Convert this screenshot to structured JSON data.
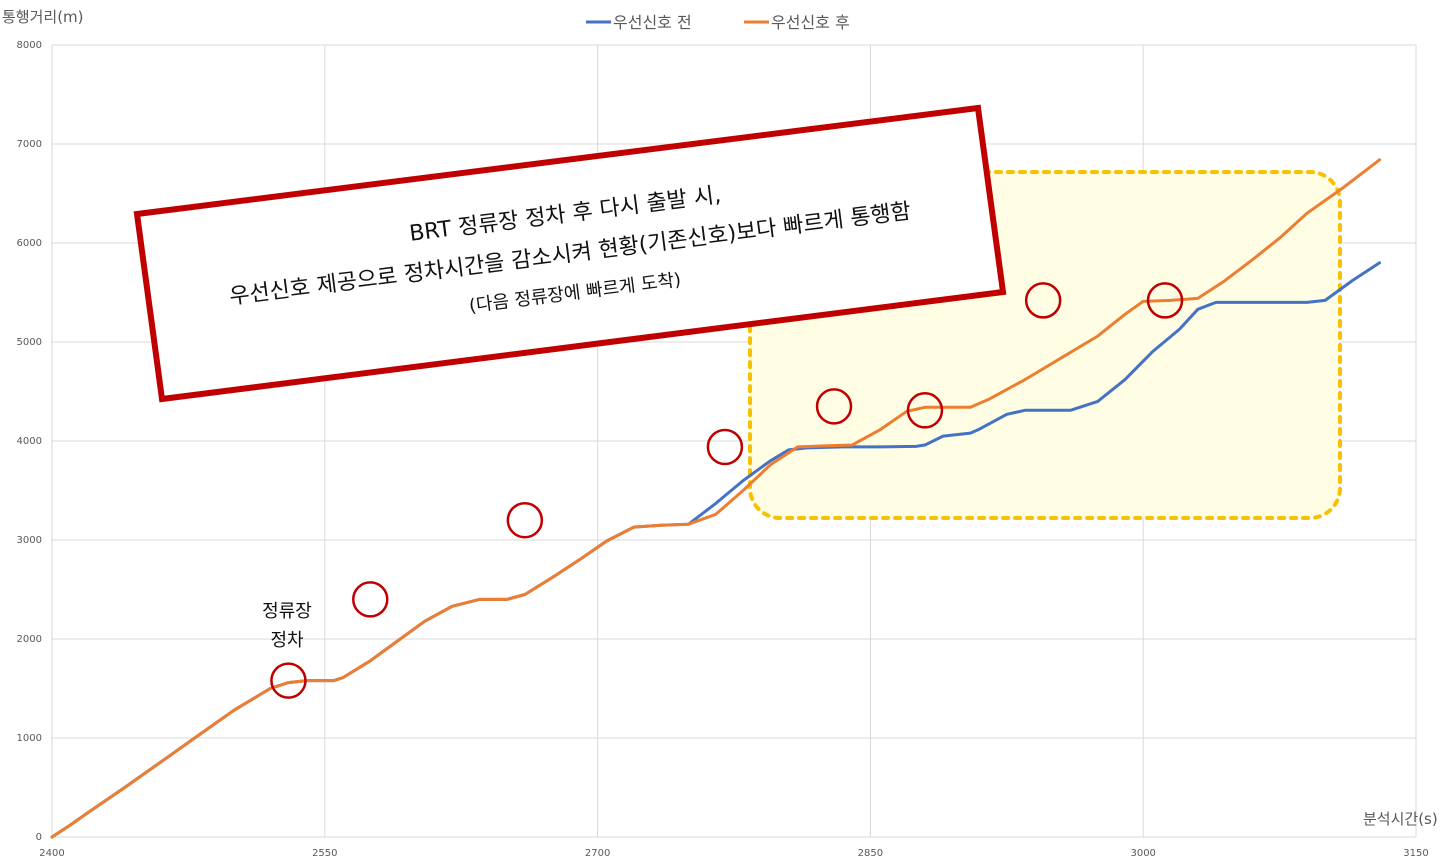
{
  "chart_data": {
    "type": "line",
    "xlabel": "분석시간(s)",
    "ylabel": "통행거리(m)",
    "xlim": [
      2400,
      3150
    ],
    "ylim": [
      0,
      8000
    ],
    "xticks": [
      "2400",
      "2550",
      "2700",
      "2850",
      "3000",
      "3150"
    ],
    "yticks": [
      "0",
      "1000",
      "2000",
      "3000",
      "4000",
      "5000",
      "6000",
      "7000",
      "8000"
    ],
    "grid": true,
    "legend_position": "top-center",
    "series": [
      {
        "name": "우선신호 전",
        "color": "#4472C4",
        "points": [
          [
            2400,
            0
          ],
          [
            2410,
            120
          ],
          [
            2420,
            250
          ],
          [
            2440,
            500
          ],
          [
            2460,
            760
          ],
          [
            2480,
            1020
          ],
          [
            2500,
            1280
          ],
          [
            2520,
            1500
          ],
          [
            2530,
            1560
          ],
          [
            2540,
            1580
          ],
          [
            2555,
            1580
          ],
          [
            2560,
            1610
          ],
          [
            2575,
            1780
          ],
          [
            2590,
            1980
          ],
          [
            2605,
            2180
          ],
          [
            2620,
            2330
          ],
          [
            2635,
            2400
          ],
          [
            2650,
            2400
          ],
          [
            2660,
            2450
          ],
          [
            2675,
            2620
          ],
          [
            2690,
            2800
          ],
          [
            2705,
            2990
          ],
          [
            2720,
            3130
          ],
          [
            2735,
            3150
          ],
          [
            2750,
            3160
          ],
          [
            2765,
            3370
          ],
          [
            2780,
            3600
          ],
          [
            2795,
            3800
          ],
          [
            2805,
            3910
          ],
          [
            2815,
            3930
          ],
          [
            2835,
            3940
          ],
          [
            2855,
            3940
          ],
          [
            2875,
            3945
          ],
          [
            2880,
            3960
          ],
          [
            2890,
            4050
          ],
          [
            2905,
            4080
          ],
          [
            2910,
            4120
          ],
          [
            2925,
            4270
          ],
          [
            2935,
            4310
          ],
          [
            2960,
            4310
          ],
          [
            2975,
            4400
          ],
          [
            2990,
            4620
          ],
          [
            3005,
            4900
          ],
          [
            3020,
            5130
          ],
          [
            3030,
            5330
          ],
          [
            3040,
            5400
          ],
          [
            3070,
            5400
          ],
          [
            3090,
            5400
          ],
          [
            3100,
            5420
          ],
          [
            3115,
            5620
          ],
          [
            3130,
            5800
          ]
        ]
      },
      {
        "name": "우선신호 후",
        "color": "#ED7D31",
        "points": [
          [
            2400,
            0
          ],
          [
            2410,
            120
          ],
          [
            2420,
            250
          ],
          [
            2440,
            500
          ],
          [
            2460,
            760
          ],
          [
            2480,
            1020
          ],
          [
            2500,
            1280
          ],
          [
            2520,
            1500
          ],
          [
            2530,
            1560
          ],
          [
            2540,
            1580
          ],
          [
            2555,
            1580
          ],
          [
            2560,
            1610
          ],
          [
            2575,
            1780
          ],
          [
            2590,
            1980
          ],
          [
            2605,
            2180
          ],
          [
            2620,
            2330
          ],
          [
            2635,
            2400
          ],
          [
            2650,
            2400
          ],
          [
            2660,
            2450
          ],
          [
            2675,
            2620
          ],
          [
            2690,
            2800
          ],
          [
            2705,
            2990
          ],
          [
            2720,
            3130
          ],
          [
            2735,
            3150
          ],
          [
            2750,
            3160
          ],
          [
            2765,
            3260
          ],
          [
            2780,
            3500
          ],
          [
            2795,
            3760
          ],
          [
            2810,
            3940
          ],
          [
            2825,
            3950
          ],
          [
            2840,
            3960
          ],
          [
            2855,
            4110
          ],
          [
            2870,
            4300
          ],
          [
            2880,
            4340
          ],
          [
            2905,
            4340
          ],
          [
            2915,
            4420
          ],
          [
            2935,
            4620
          ],
          [
            2955,
            4840
          ],
          [
            2975,
            5060
          ],
          [
            2990,
            5280
          ],
          [
            3000,
            5410
          ],
          [
            3015,
            5420
          ],
          [
            3030,
            5440
          ],
          [
            3045,
            5620
          ],
          [
            3060,
            5830
          ],
          [
            3075,
            6050
          ],
          [
            3090,
            6300
          ],
          [
            3110,
            6560
          ],
          [
            3130,
            6840
          ]
        ]
      }
    ],
    "stop_markers": [
      [
        2530,
        1580
      ],
      [
        2575,
        2400
      ],
      [
        2660,
        3200
      ],
      [
        2770,
        3940
      ],
      [
        2830,
        4350
      ],
      [
        2880,
        4310
      ],
      [
        2945,
        5420
      ],
      [
        3012,
        5420
      ]
    ]
  },
  "annotations": {
    "callout_line1": "BRT 정류장 정차 후 다시 출발 시,",
    "callout_line2": "우선신호 제공으로 정차시간을 감소시켜 현황(기존신호)보다 빠르게 통행함",
    "callout_line3": "(다음 정류장에 빠르게 도착)",
    "stop_label_line1": "정류장",
    "stop_label_line2": "정차"
  }
}
